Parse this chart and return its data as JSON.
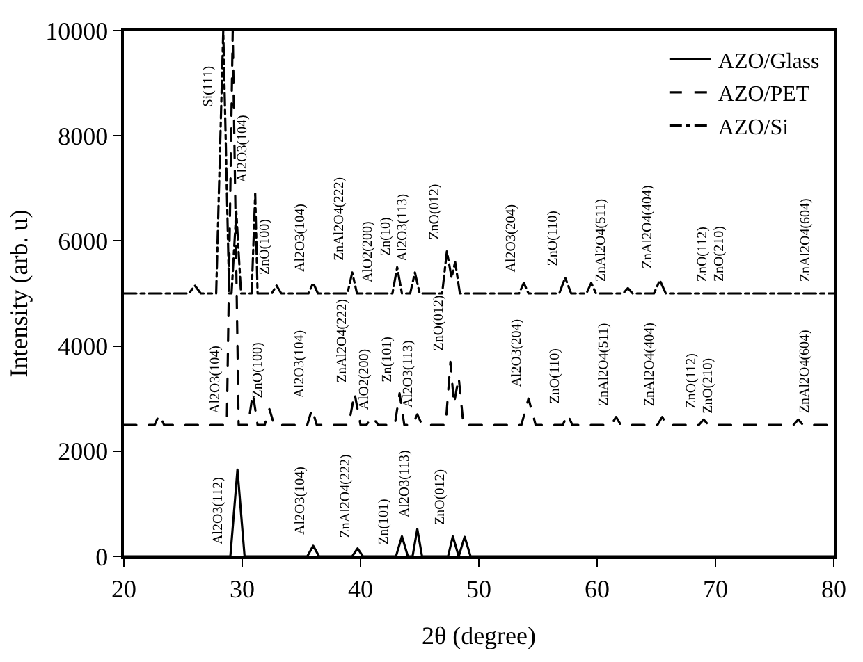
{
  "chart_data": {
    "type": "line",
    "xlabel": "2θ (degree)",
    "ylabel": "Intensity (arb. u)",
    "xlim": [
      20,
      80
    ],
    "xticks": [
      20,
      30,
      40,
      50,
      60,
      70,
      80
    ],
    "ylim": [
      0,
      10000
    ],
    "yticks": [
      0,
      2000,
      4000,
      6000,
      8000,
      10000
    ],
    "grid": false,
    "legend": "top right",
    "marker": "none",
    "series": [
      {
        "name": "AZO/Glass",
        "color": "#000000",
        "line_style": "solid",
        "x": [
          20,
          29.0,
          29.6,
          30.2,
          35.5,
          36.0,
          36.5,
          39.3,
          39.75,
          40.2,
          43.0,
          43.5,
          44.0,
          44.4,
          44.8,
          45.2,
          47.4,
          47.8,
          48.3,
          48.8,
          49.3,
          80
        ],
        "values": [
          0,
          0,
          1650,
          0,
          0,
          200,
          0,
          0,
          150,
          0,
          0,
          380,
          0,
          0,
          520,
          0,
          0,
          380,
          0,
          370,
          0,
          0
        ]
      },
      {
        "name": "AZO/PET",
        "color": "#000000",
        "line_style": "dashed",
        "x": [
          20,
          22.6,
          23,
          23.4,
          28.7,
          29.2,
          29.7,
          30.5,
          30.9,
          31.3,
          31.9,
          32.3,
          32.7,
          35.5,
          35.9,
          36.3,
          39.0,
          39.5,
          40.0,
          40.5,
          41.0,
          41.5,
          42.9,
          43.3,
          43.7,
          44.4,
          44.8,
          45.2,
          47.2,
          47.6,
          47.9,
          48.3,
          48.7,
          53.6,
          54.2,
          54.8,
          57.1,
          57.5,
          57.9,
          61.2,
          61.6,
          62.0,
          65.1,
          65.5,
          65.9,
          68.6,
          69.0,
          69.4,
          76.6,
          77.0,
          77.4,
          80
        ],
        "values": [
          2500,
          2500,
          2700,
          2500,
          2500,
          10000,
          2500,
          2500,
          3100,
          2500,
          2500,
          2800,
          2500,
          2500,
          2800,
          2500,
          2500,
          3100,
          2500,
          2500,
          2650,
          2500,
          2500,
          3100,
          2500,
          2500,
          2700,
          2500,
          2500,
          3700,
          2900,
          3400,
          2500,
          2500,
          3000,
          2500,
          2500,
          2700,
          2500,
          2500,
          2650,
          2500,
          2500,
          2650,
          2500,
          2500,
          2600,
          2500,
          2500,
          2600,
          2500,
          2500
        ]
      },
      {
        "name": "AZO/Si",
        "color": "#000000",
        "line_style": "dashdot",
        "x": [
          20,
          25.5,
          26,
          26.5,
          27.8,
          28.4,
          28.9,
          29.1,
          29.5,
          29.9,
          30.8,
          31.1,
          31.3,
          32.5,
          32.9,
          33.3,
          35.6,
          36,
          36.4,
          38.9,
          39.3,
          39.7,
          42.7,
          43.1,
          43.5,
          44.2,
          44.6,
          45,
          46.9,
          47.3,
          47.7,
          48,
          48.4,
          53.4,
          53.8,
          54.2,
          56.8,
          57.3,
          57.8,
          59.1,
          59.5,
          59.9,
          62.2,
          62.6,
          63,
          64.8,
          65.3,
          65.8,
          80
        ],
        "values": [
          5000,
          5000,
          5150,
          5000,
          5000,
          10000,
          5000,
          5000,
          6560,
          5000,
          5000,
          6900,
          5000,
          5000,
          5150,
          5000,
          5000,
          5200,
          5000,
          5000,
          5400,
          5000,
          5000,
          5500,
          5000,
          5000,
          5400,
          5000,
          5000,
          5800,
          5300,
          5600,
          5000,
          5000,
          5200,
          5000,
          5000,
          5300,
          5000,
          5000,
          5200,
          5000,
          5000,
          5100,
          5000,
          5000,
          5250,
          5000,
          5000
        ]
      }
    ],
    "annotations": [
      {
        "text": "Si(111)",
        "x": 28.2,
        "y": 8333
      },
      {
        "text": "Al2O3(104)",
        "x": 31.1,
        "y": 6900
      },
      {
        "text": "ZnO(100)",
        "x": 32.9,
        "y": 5150
      },
      {
        "text": "Al2O3(104)",
        "x": 36,
        "y": 5200
      },
      {
        "text": "ZnAl2O4(222)",
        "x": 39.3,
        "y": 5400
      },
      {
        "text": "AlO2(200)",
        "x": 41.6,
        "y": 5000
      },
      {
        "text": "Zn(10)",
        "x": 43.1,
        "y": 5500
      },
      {
        "text": "Al2O3(113)",
        "x": 44.6,
        "y": 5400
      },
      {
        "text": "ZnO(012)",
        "x": 47.3,
        "y": 5800
      },
      {
        "text": "Al2O3(204)",
        "x": 53.8,
        "y": 5200
      },
      {
        "text": "ZnO(110)",
        "x": 57.3,
        "y": 5300
      },
      {
        "text": "ZnAl2O4(511)",
        "x": 61.3,
        "y": 5000
      },
      {
        "text": "ZnAl2O4(404)",
        "x": 65.3,
        "y": 5250
      },
      {
        "text": "ZnO(112)",
        "x": 69.9,
        "y": 5000
      },
      {
        "text": "ZnO(210)",
        "x": 71.3,
        "y": 5000
      },
      {
        "text": "ZnAl2O4(604)",
        "x": 78.6,
        "y": 5000
      },
      {
        "text": "Al2O3(104)",
        "x": 28.7,
        "y": 2500
      },
      {
        "text": "ZnO(100)",
        "x": 32.3,
        "y": 2800
      },
      {
        "text": "Al2O3(104)",
        "x": 35.9,
        "y": 2800
      },
      {
        "text": "ZnAl2O4(222)",
        "x": 39.5,
        "y": 3100
      },
      {
        "text": "AlO2(200)",
        "x": 41.3,
        "y": 2560
      },
      {
        "text": "Zn(101)",
        "x": 43.3,
        "y": 3100
      },
      {
        "text": "Al2O3(113)",
        "x": 45.0,
        "y": 2600
      },
      {
        "text": "ZnO(012)",
        "x": 47.6,
        "y": 3700
      },
      {
        "text": "Al2O3(204)",
        "x": 54.2,
        "y": 3000
      },
      {
        "text": "ZnO(110)",
        "x": 57.5,
        "y": 2700
      },
      {
        "text": "ZnAl2O4(511)",
        "x": 61.6,
        "y": 2650
      },
      {
        "text": "ZnAl2O4(404)",
        "x": 65.5,
        "y": 2650
      },
      {
        "text": "ZnO(112)",
        "x": 69.0,
        "y": 2600
      },
      {
        "text": "ZnO(210)",
        "x": 70.4,
        "y": 2500
      },
      {
        "text": "ZnAl2O4(604)",
        "x": 78.6,
        "y": 2500
      },
      {
        "text": "Al2O3(112)",
        "x": 29.0,
        "y": 0
      },
      {
        "text": "Al2O3(104)",
        "x": 36.0,
        "y": 200
      },
      {
        "text": "ZnAl2O4(222)",
        "x": 39.75,
        "y": 150
      },
      {
        "text": "Zn(101)",
        "x": 43.0,
        "y": 0
      },
      {
        "text": "Al2O3(113)",
        "x": 44.8,
        "y": 520
      },
      {
        "text": "ZnO(012)",
        "x": 47.8,
        "y": 380
      }
    ]
  }
}
